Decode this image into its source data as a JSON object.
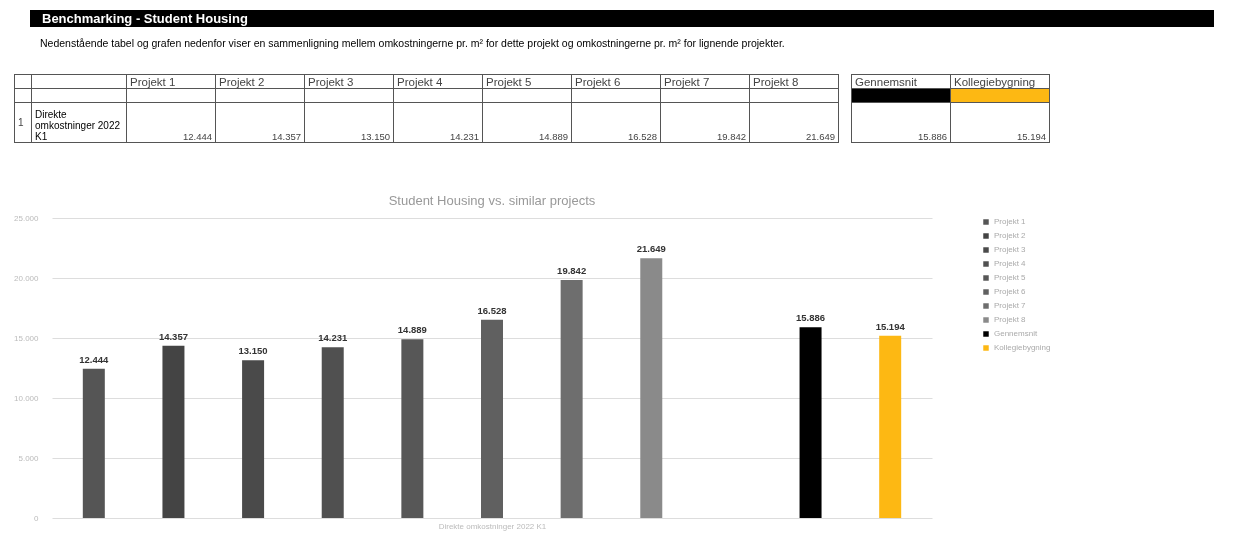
{
  "chart_data": {
    "type": "bar",
    "title": "Student Housing vs. similar projects",
    "annotations": [
      "Benchmarking - Student Housing",
      "Nedenstående tabel og grafen nedenfor viser en sammenligning mellem omkostningerne pr. m² for dette projekt og omkostningerne pr. m² for lignende projekter.",
      "1"
    ],
    "xlabel": "Direkte omkostninger 2022 K1",
    "categories": [
      null
    ],
    "series": [
      {
        "name": "Projekt 1",
        "color": "#555555",
        "values": [
          12444
        ],
        "value_labels": [
          "12.444"
        ]
      },
      {
        "name": "Projekt 2",
        "color": "#444444",
        "values": [
          14357
        ],
        "value_labels": [
          "14.357"
        ]
      },
      {
        "name": "Projekt 3",
        "color": "#4a4a4a",
        "values": [
          13150
        ],
        "value_labels": [
          "13.150"
        ]
      },
      {
        "name": "Projekt 4",
        "color": "#505050",
        "values": [
          14231
        ],
        "value_labels": [
          "14.231"
        ]
      },
      {
        "name": "Projekt 5",
        "color": "#575757",
        "values": [
          14889
        ],
        "value_labels": [
          "14.889"
        ]
      },
      {
        "name": "Projekt 6",
        "color": "#606060",
        "values": [
          16528
        ],
        "value_labels": [
          "16.528"
        ]
      },
      {
        "name": "Projekt 7",
        "color": "#6e6e6e",
        "values": [
          19842
        ],
        "value_labels": [
          "19.842"
        ]
      },
      {
        "name": "Projekt 8",
        "color": "#8a8a8a",
        "values": [
          21649
        ],
        "value_labels": [
          "21.649"
        ]
      },
      {
        "values": [
          null
        ]
      },
      {
        "name": "Gennemsnit",
        "color": "#000000",
        "values": [
          15886
        ],
        "value_labels": [
          "15.886"
        ]
      },
      {
        "name": "Kollegiebygning",
        "color": "#fdb813",
        "values": [
          15194
        ],
        "value_labels": [
          "15.194"
        ]
      }
    ],
    "ylim": [
      0,
      25000
    ],
    "yticks": [
      0,
      {
        "value": 5000,
        "label": "5.000"
      },
      {
        "value": 10000,
        "label": "10.000"
      },
      {
        "value": 15000,
        "label": "15.000"
      },
      {
        "value": 20000,
        "label": "20.000"
      },
      {
        "value": 25000,
        "label": "25.000"
      }
    ],
    "grid": "y",
    "legend": "right"
  }
}
